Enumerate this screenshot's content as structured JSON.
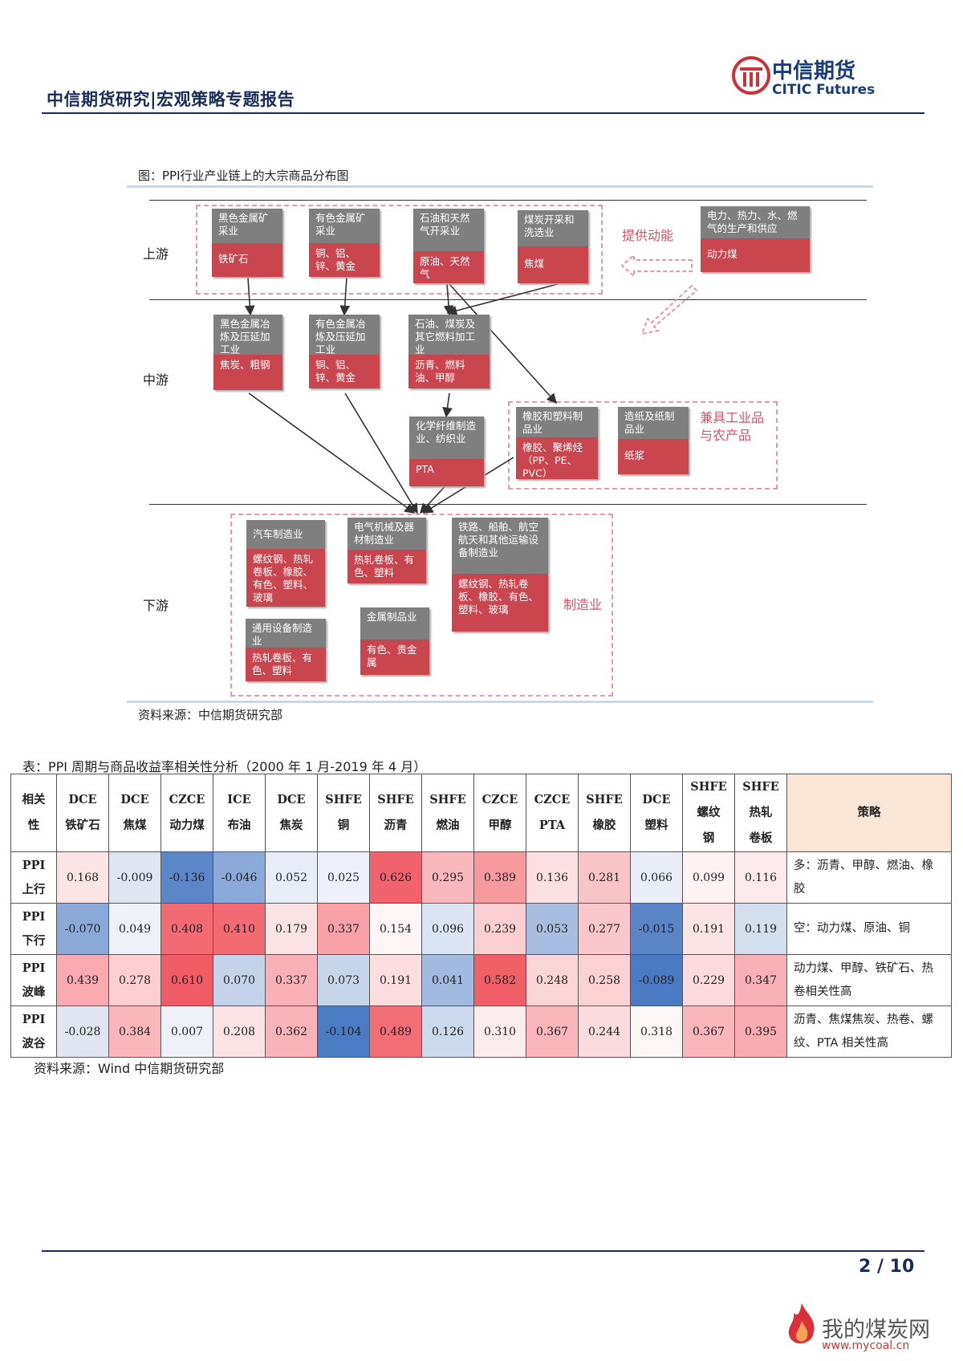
{
  "header": {
    "title": "中信期货研究|宏观策略专题报告",
    "logo_cn": "中信期货",
    "logo_en": "CITIC Futures"
  },
  "figure": {
    "caption": "图：PPI行业产业链上的大宗商品分布图",
    "source": "资料来源：中信期货研究部",
    "zones": [
      "上游",
      "中游",
      "下游"
    ],
    "upstream": [
      {
        "title": "黑色金属矿采业",
        "items": "铁矿石"
      },
      {
        "title": "有色金属矿采业",
        "items": "铜、铝、锌、黄金"
      },
      {
        "title": "石油和天然气开采业",
        "items": "原油、天然气"
      },
      {
        "title": "煤炭开采和洗选业",
        "items": "焦煤"
      }
    ],
    "power": {
      "title": "电力、热力、水、燃气的生产和供应",
      "items": "动力煤"
    },
    "power_label": "提供动能",
    "midstream": [
      {
        "title": "黑色金属冶炼及压延加工业",
        "items": "焦炭、粗钢"
      },
      {
        "title": "有色金属冶炼及压延加工业",
        "items": "铜、铝、锌、黄金"
      },
      {
        "title": "石油、煤炭及其它燃料加工业",
        "items": "沥青、燃料油、甲醇"
      },
      {
        "title": "化学纤维制造业、纺织业",
        "items": "PTA"
      },
      {
        "title": "橡胶和塑料制品业",
        "items": "橡胶、聚烯烃（PP、PE、PVC）"
      },
      {
        "title": "造纸及纸制品业",
        "items": "纸浆"
      }
    ],
    "mid_label": "兼具工业品与农产品",
    "downstream": [
      {
        "title": "汽车制造业",
        "items": "螺纹钢、热轧卷板、橡胶、有色、塑料、玻璃"
      },
      {
        "title": "电气机械及器材制造业",
        "items": "热轧卷板、有色、塑料"
      },
      {
        "title": "铁路、船舶、航空航天和其他运输设备制造业",
        "items": "螺纹钢、热轧卷板、橡胶、有色、塑料、玻璃"
      },
      {
        "title": "通用设备制造业",
        "items": "热轧卷板、有色、塑料"
      },
      {
        "title": "金属制品业",
        "items": "有色、贵金属"
      }
    ],
    "down_label": "制造业"
  },
  "table": {
    "caption": "表：PPI 周期与商品收益率相关性分析（2000 年 1 月-2019 年 4 月）",
    "source": "资料来源：Wind 中信期货研究部",
    "corner": [
      "相关",
      "性"
    ],
    "columns": [
      [
        "DCE",
        "铁矿石"
      ],
      [
        "DCE",
        "焦煤"
      ],
      [
        "CZCE",
        "动力煤"
      ],
      [
        "ICE",
        "布油"
      ],
      [
        "DCE",
        "焦炭"
      ],
      [
        "SHFE",
        "铜"
      ],
      [
        "SHFE",
        "沥青"
      ],
      [
        "SHFE",
        "燃油"
      ],
      [
        "CZCE",
        "甲醇"
      ],
      [
        "CZCE",
        "PTA"
      ],
      [
        "SHFE",
        "橡胶"
      ],
      [
        "DCE",
        "塑料"
      ],
      [
        "SHFE",
        "螺纹",
        "钢"
      ],
      [
        "SHFE",
        "热轧",
        "卷板"
      ]
    ],
    "strategy_header": "策略",
    "rows": [
      {
        "label": [
          "PPI",
          "上行"
        ],
        "values": [
          "0.168",
          "-0.009",
          "-0.136",
          "-0.046",
          "0.052",
          "0.025",
          "0.626",
          "0.295",
          "0.389",
          "0.136",
          "0.281",
          "0.066",
          "0.099",
          "0.116"
        ],
        "strategy": "多：沥青、甲醇、燃油、橡胶"
      },
      {
        "label": [
          "PPI",
          "下行"
        ],
        "values": [
          "-0.070",
          "0.049",
          "0.408",
          "0.410",
          "0.179",
          "0.337",
          "0.154",
          "0.096",
          "0.239",
          "0.053",
          "0.277",
          "-0.015",
          "0.191",
          "0.119"
        ],
        "strategy": "空：动力煤、原油、铜"
      },
      {
        "label": [
          "PPI",
          "波峰"
        ],
        "values": [
          "0.439",
          "0.278",
          "0.610",
          "0.070",
          "0.337",
          "0.073",
          "0.191",
          "0.041",
          "0.582",
          "0.248",
          "0.258",
          "-0.089",
          "0.229",
          "0.347"
        ],
        "strategy": "动力煤、甲醇、铁矿石、热卷相关性高"
      },
      {
        "label": [
          "PPI",
          "波谷"
        ],
        "values": [
          "-0.028",
          "0.384",
          "0.007",
          "0.208",
          "0.362",
          "-0.104",
          "0.489",
          "0.126",
          "0.310",
          "0.367",
          "0.244",
          "0.318",
          "0.367",
          "0.395"
        ],
        "strategy": "沥青、焦煤焦炭、热卷、螺纹、PTA 相关性高"
      }
    ],
    "cell_colors": [
      [
        "#fbe4e6",
        "#dfe6f2",
        "#5b87c9",
        "#8aa9d8",
        "#e7ecf6",
        "#edf0f8",
        "#f0636c",
        "#f8b8bd",
        "#f69aa0",
        "#fbe0e3",
        "#f9c4c8",
        "#e9edf6",
        "#fdf3f4",
        "#fbe9eb"
      ],
      [
        "#8aa9d8",
        "#eef2f8",
        "#f26a72",
        "#f26a72",
        "#fbe2e5",
        "#f8a1a7",
        "#fdf5f6",
        "#dbe4f2",
        "#facfd3",
        "#a6bde0",
        "#f9c7cb",
        "#5a86c8",
        "#fbe4e6",
        "#d3deef"
      ],
      [
        "#f9aab0",
        "#fccfd3",
        "#f05c65",
        "#c4d3ea",
        "#f9b0b6",
        "#c7d5eb",
        "#fddde0",
        "#a2bae0",
        "#f05f68",
        "#fbd5d8",
        "#fbd1d4",
        "#4a7ac2",
        "#fcdadd",
        "#f8b1b6"
      ],
      [
        "#dfe6f2",
        "#f9b6bb",
        "#eef1f8",
        "#fbe2e5",
        "#f9b4b9",
        "#4b7bc3",
        "#f26e76",
        "#ccd9ed",
        "#fcecee",
        "#f9b7bc",
        "#fbdcde",
        "#fdf7f8",
        "#f9b7bc",
        "#f8adb2"
      ]
    ]
  },
  "footer": {
    "page": "2 / 10",
    "watermark_cn": "我的煤炭网",
    "watermark_url": "www.mycoal.cn"
  }
}
